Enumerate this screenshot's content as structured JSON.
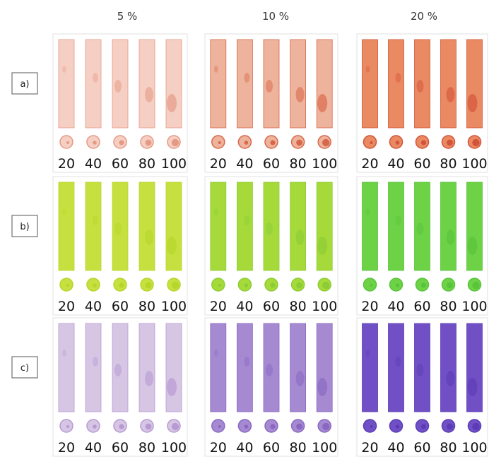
{
  "column_headers": [
    "5 %",
    "10 %",
    "20 %"
  ],
  "rows": [
    {
      "label": "a)",
      "panels": [
        {
          "labels": [
            20,
            40,
            60,
            80,
            100
          ]
        },
        {
          "labels": [
            20,
            40,
            60,
            80,
            100
          ]
        },
        {
          "labels": [
            20,
            40,
            60,
            80,
            100
          ]
        }
      ]
    },
    {
      "label": "b)",
      "panels": [
        {
          "labels": [
            20,
            40,
            60,
            80,
            100
          ]
        },
        {
          "labels": [
            20,
            40,
            60,
            80,
            100
          ]
        },
        {
          "labels": [
            20,
            40,
            60,
            80,
            100
          ]
        }
      ]
    },
    {
      "label": "c)",
      "panels": [
        {
          "labels": [
            20,
            40,
            60,
            80,
            100
          ]
        },
        {
          "labels": [
            20,
            40,
            60,
            80,
            100
          ]
        },
        {
          "labels": [
            20,
            40,
            60,
            80,
            100
          ]
        }
      ]
    }
  ]
}
